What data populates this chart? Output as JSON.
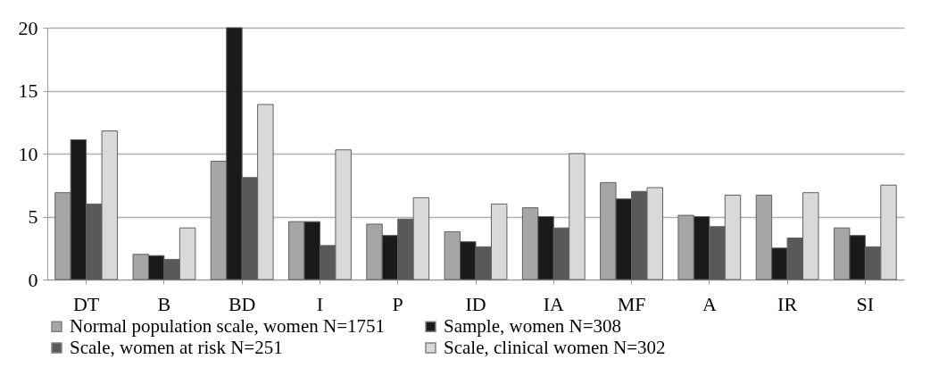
{
  "chart_data": {
    "type": "bar",
    "categories": [
      "DT",
      "B",
      "BD",
      "I",
      "P",
      "ID",
      "IA",
      "MF",
      "A",
      "IR",
      "SI"
    ],
    "series": [
      {
        "name": "Normal population scale, women N=1751",
        "color": "#a6a6a6",
        "values": [
          6.9,
          2.0,
          9.4,
          4.6,
          4.4,
          3.8,
          5.7,
          7.7,
          5.1,
          6.7,
          4.1
        ]
      },
      {
        "name": "Sample, women N=308",
        "color": "#1a1a1a",
        "values": [
          11.1,
          1.9,
          20.0,
          4.6,
          3.5,
          3.0,
          5.0,
          6.4,
          5.0,
          2.5,
          3.5
        ]
      },
      {
        "name": "Scale, women at risk N=251",
        "color": "#595959",
        "values": [
          6.0,
          1.6,
          8.1,
          2.7,
          4.8,
          2.6,
          4.1,
          7.0,
          4.2,
          3.3,
          2.6
        ]
      },
      {
        "name": "Scale, clinical women N=302",
        "color": "#d9d9d9",
        "values": [
          11.8,
          4.1,
          13.9,
          10.3,
          6.5,
          6.0,
          10.0,
          7.3,
          6.7,
          6.9,
          7.5
        ]
      }
    ],
    "ylim": [
      0,
      20
    ],
    "yticks": [
      0,
      5,
      10,
      15,
      20
    ],
    "grid": "y",
    "legend": "bottom"
  }
}
